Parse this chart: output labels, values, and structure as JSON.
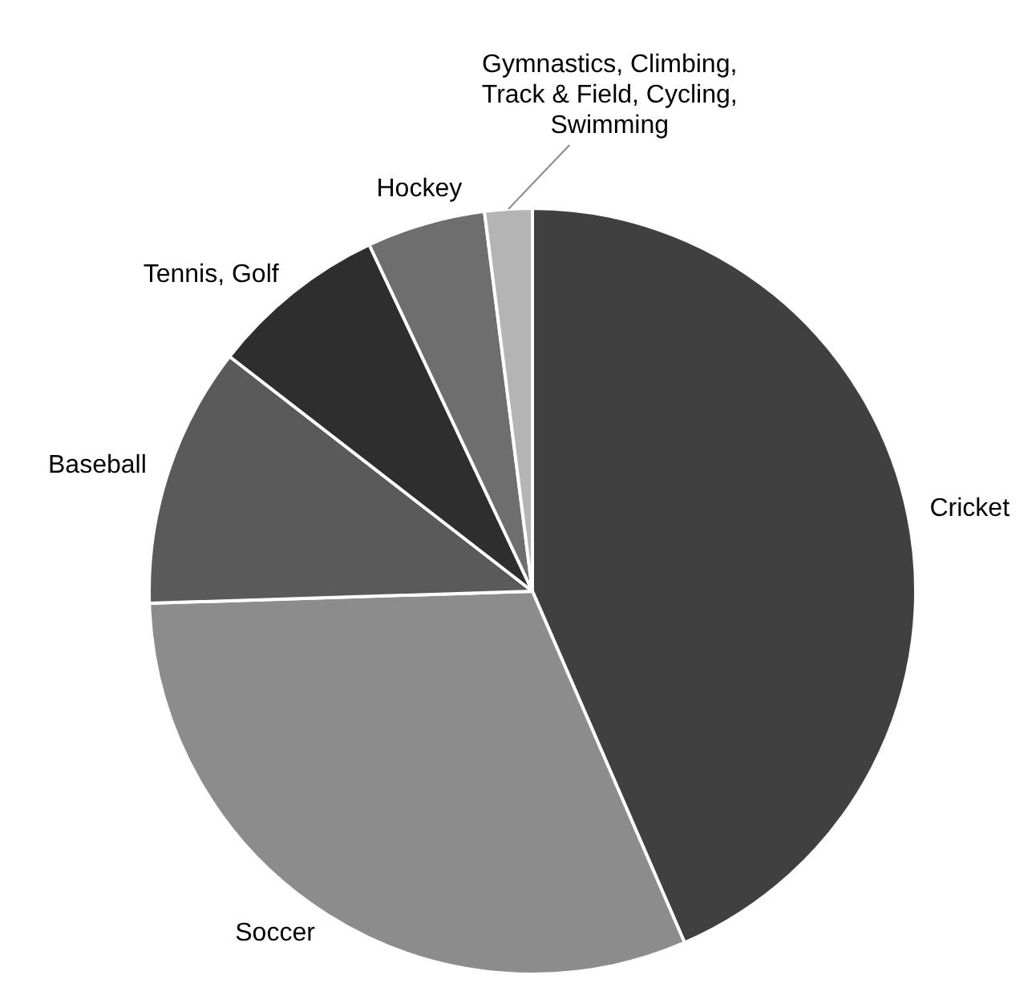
{
  "chart_data": {
    "type": "pie",
    "categories": [
      "Cricket",
      "Soccer",
      "Baseball",
      "Tennis, Golf",
      "Hockey",
      "Gymnastics, Climbing, Track & Field, Cycling, Swimming"
    ],
    "values": [
      43.5,
      31,
      11,
      7.5,
      5,
      2
    ],
    "colors": [
      "#404040",
      "#8c8c8c",
      "#5a5a5a",
      "#2e2e2e",
      "#6e6e6e",
      "#b4b4b4"
    ],
    "legend": false
  }
}
